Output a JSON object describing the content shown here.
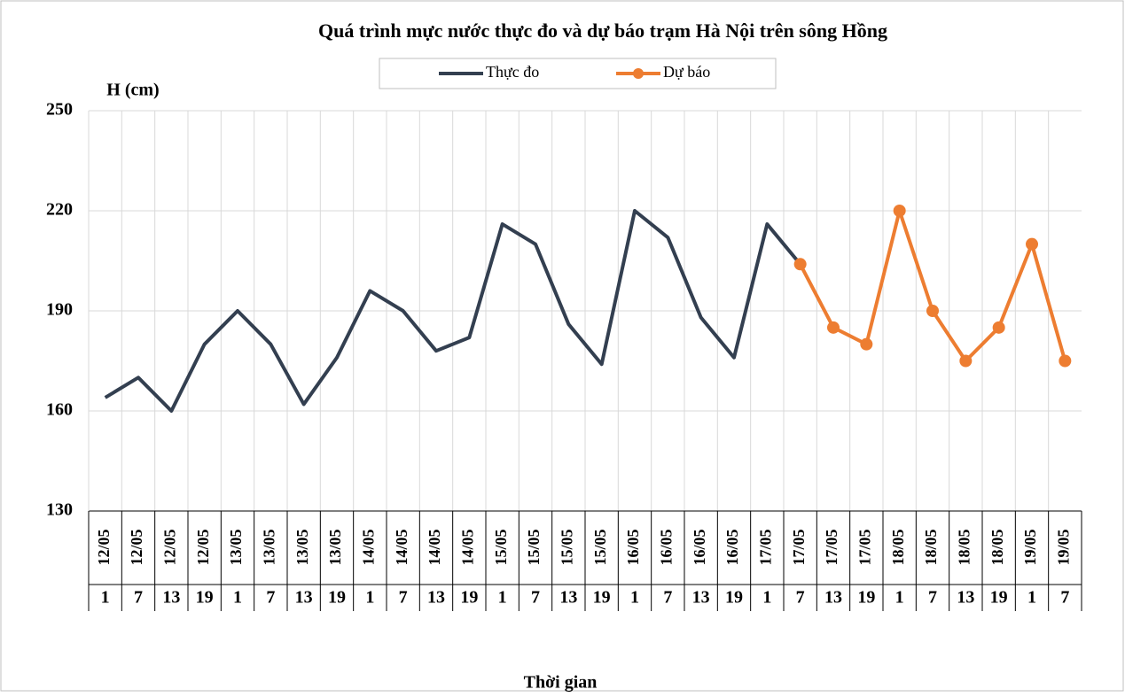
{
  "chart_data": {
    "type": "line",
    "title": "Quá trình mực nước thực đo và dự báo trạm Hà Nội trên sông Hồng",
    "y_label": "H (cm)",
    "x_label": "Thời gian",
    "category_dates": [
      "12/05",
      "12/05",
      "12/05",
      "12/05",
      "13/05",
      "13/05",
      "13/05",
      "13/05",
      "14/05",
      "14/05",
      "14/05",
      "14/05",
      "15/05",
      "15/05",
      "15/05",
      "15/05",
      "16/05",
      "16/05",
      "16/05",
      "16/05",
      "17/05",
      "17/05",
      "17/05",
      "17/05",
      "18/05",
      "18/05",
      "18/05",
      "18/05",
      "19/05",
      "19/05"
    ],
    "categories": [
      "1",
      "7",
      "13",
      "19",
      "1",
      "7",
      "13",
      "19",
      "1",
      "7",
      "13",
      "19",
      "1",
      "7",
      "13",
      "19",
      "1",
      "7",
      "13",
      "19",
      "1",
      "7",
      "13",
      "19",
      "1",
      "7",
      "13",
      "19",
      "1",
      "7"
    ],
    "series": [
      {
        "name": "Thực đo",
        "color": "#333f50",
        "markers": false,
        "values": [
          164,
          170,
          160,
          180,
          190,
          180,
          162,
          176,
          196,
          190,
          178,
          182,
          216,
          210,
          186,
          174,
          220,
          212,
          188,
          176,
          216,
          204,
          null,
          null,
          null,
          null,
          null,
          null,
          null,
          null
        ]
      },
      {
        "name": "Dự báo",
        "color": "#ed7d31",
        "markers": true,
        "values": [
          null,
          null,
          null,
          null,
          null,
          null,
          null,
          null,
          null,
          null,
          null,
          null,
          null,
          null,
          null,
          null,
          null,
          null,
          null,
          null,
          null,
          204,
          185,
          180,
          220,
          190,
          175,
          185,
          210,
          175
        ]
      }
    ],
    "ylim": [
      130,
      250
    ],
    "yticks": [
      130,
      160,
      190,
      220,
      250
    ],
    "grid": true,
    "legend": "top"
  }
}
